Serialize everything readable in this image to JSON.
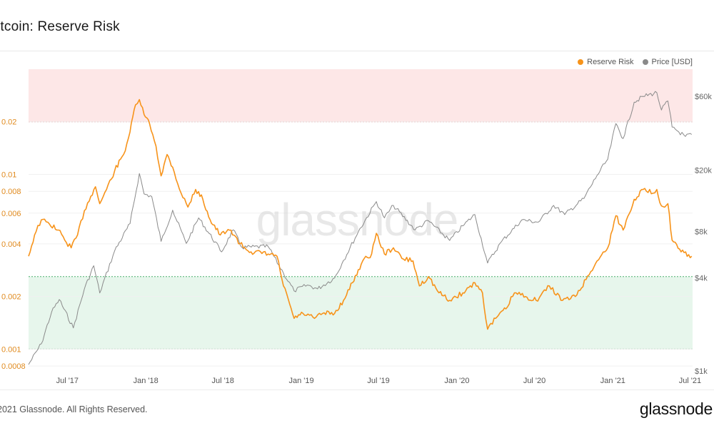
{
  "header": {
    "title": "itcoin: Reserve Risk"
  },
  "footer": {
    "copyright": "2021 Glassnode. All Rights Reserved.",
    "brand": "glassnode"
  },
  "watermark": "glassnode",
  "colors": {
    "reserve_risk": "#f7931a",
    "price": "#8a8a8a",
    "high_zone": "#fde7e7",
    "low_zone": "#e7f6ec",
    "high_line": "#e06666",
    "low_line": "#4caf6e"
  },
  "chart_data": {
    "type": "line",
    "title": "itcoin: Reserve Risk",
    "legend": [
      {
        "name": "Reserve Risk",
        "color": "#f7931a"
      },
      {
        "name": "Price [USD]",
        "color": "#8a8a8a"
      }
    ],
    "legend_position": "top-right",
    "x_ticks": [
      "Jul '17",
      "Jan '18",
      "Jul '18",
      "Jan '19",
      "Jul '19",
      "Jan '20",
      "Jul '20",
      "Jan '21",
      "Jul '21"
    ],
    "x_range": [
      "2017-04-01",
      "2021-07-07"
    ],
    "y_left": {
      "scale": "log",
      "range": [
        0.00075,
        0.04
      ],
      "ticks": [
        "0.02",
        "0.01",
        "0.008",
        "0.006",
        "0.004",
        "0.002",
        "0.001",
        "0.0008"
      ]
    },
    "y_right": {
      "scale": "log",
      "range": [
        1000,
        90000
      ],
      "ticks": [
        "$60k",
        "$20k",
        "$8k",
        "$4k",
        "$1k"
      ]
    },
    "zones": {
      "high_threshold": 0.02,
      "low_threshold": 0.0026,
      "bottom_threshold": 0.001
    },
    "series": [
      {
        "name": "Reserve Risk",
        "axis": "left",
        "points": [
          [
            "2017-04-01",
            0.0034
          ],
          [
            "2017-04-15",
            0.0045
          ],
          [
            "2017-05-01",
            0.0055
          ],
          [
            "2017-05-20",
            0.0052
          ],
          [
            "2017-06-10",
            0.0048
          ],
          [
            "2017-06-25",
            0.0042
          ],
          [
            "2017-07-10",
            0.0038
          ],
          [
            "2017-07-25",
            0.0045
          ],
          [
            "2017-08-10",
            0.0062
          ],
          [
            "2017-08-25",
            0.0075
          ],
          [
            "2017-09-05",
            0.0085
          ],
          [
            "2017-09-15",
            0.0068
          ],
          [
            "2017-10-01",
            0.0082
          ],
          [
            "2017-10-20",
            0.0105
          ],
          [
            "2017-11-10",
            0.013
          ],
          [
            "2017-11-25",
            0.0175
          ],
          [
            "2017-12-08",
            0.025
          ],
          [
            "2017-12-17",
            0.0268
          ],
          [
            "2017-12-28",
            0.022
          ],
          [
            "2018-01-10",
            0.0195
          ],
          [
            "2018-01-25",
            0.0145
          ],
          [
            "2018-02-06",
            0.0098
          ],
          [
            "2018-02-20",
            0.013
          ],
          [
            "2018-03-05",
            0.011
          ],
          [
            "2018-03-25",
            0.0078
          ],
          [
            "2018-04-10",
            0.0065
          ],
          [
            "2018-04-28",
            0.0082
          ],
          [
            "2018-05-15",
            0.0072
          ],
          [
            "2018-06-01",
            0.0055
          ],
          [
            "2018-06-25",
            0.0045
          ],
          [
            "2018-07-20",
            0.0048
          ],
          [
            "2018-08-10",
            0.004
          ],
          [
            "2018-09-05",
            0.0036
          ],
          [
            "2018-10-15",
            0.0035
          ],
          [
            "2018-11-05",
            0.0034
          ],
          [
            "2018-11-20",
            0.0023
          ],
          [
            "2018-12-05",
            0.0018
          ],
          [
            "2018-12-15",
            0.0015
          ],
          [
            "2019-01-05",
            0.0016
          ],
          [
            "2019-02-01",
            0.0015
          ],
          [
            "2019-02-20",
            0.0016
          ],
          [
            "2019-03-20",
            0.0016
          ],
          [
            "2019-04-10",
            0.0019
          ],
          [
            "2019-05-01",
            0.0024
          ],
          [
            "2019-05-25",
            0.0032
          ],
          [
            "2019-06-15",
            0.0035
          ],
          [
            "2019-06-26",
            0.0046
          ],
          [
            "2019-07-15",
            0.0035
          ],
          [
            "2019-08-05",
            0.0038
          ],
          [
            "2019-08-25",
            0.0033
          ],
          [
            "2019-09-20",
            0.0032
          ],
          [
            "2019-10-05",
            0.0023
          ],
          [
            "2019-10-26",
            0.0026
          ],
          [
            "2019-11-20",
            0.0021
          ],
          [
            "2019-12-15",
            0.0019
          ],
          [
            "2020-01-15",
            0.0021
          ],
          [
            "2020-02-12",
            0.0024
          ],
          [
            "2020-03-01",
            0.0021
          ],
          [
            "2020-03-13",
            0.0013
          ],
          [
            "2020-04-01",
            0.0015
          ],
          [
            "2020-04-25",
            0.0017
          ],
          [
            "2020-05-15",
            0.0021
          ],
          [
            "2020-06-10",
            0.002
          ],
          [
            "2020-07-05",
            0.0019
          ],
          [
            "2020-08-05",
            0.0023
          ],
          [
            "2020-09-05",
            0.0019
          ],
          [
            "2020-10-05",
            0.002
          ],
          [
            "2020-10-30",
            0.0025
          ],
          [
            "2020-11-25",
            0.0032
          ],
          [
            "2020-12-20",
            0.0038
          ],
          [
            "2021-01-08",
            0.0058
          ],
          [
            "2021-01-25",
            0.0048
          ],
          [
            "2021-02-20",
            0.0072
          ],
          [
            "2021-03-13",
            0.0082
          ],
          [
            "2021-04-05",
            0.0078
          ],
          [
            "2021-04-14",
            0.0082
          ],
          [
            "2021-04-25",
            0.0066
          ],
          [
            "2021-05-10",
            0.0068
          ],
          [
            "2021-05-20",
            0.0042
          ],
          [
            "2021-06-10",
            0.0036
          ],
          [
            "2021-07-05",
            0.0034
          ]
        ]
      },
      {
        "name": "Price [USD]",
        "axis": "right",
        "points": [
          [
            "2017-04-01",
            1100
          ],
          [
            "2017-05-01",
            1500
          ],
          [
            "2017-05-25",
            2400
          ],
          [
            "2017-06-12",
            2900
          ],
          [
            "2017-07-15",
            1900
          ],
          [
            "2017-08-10",
            3400
          ],
          [
            "2017-09-01",
            4800
          ],
          [
            "2017-09-15",
            3200
          ],
          [
            "2017-10-20",
            6000
          ],
          [
            "2017-11-25",
            9000
          ],
          [
            "2017-12-17",
            19000
          ],
          [
            "2017-12-28",
            14000
          ],
          [
            "2018-01-15",
            13500
          ],
          [
            "2018-02-06",
            6900
          ],
          [
            "2018-03-05",
            11000
          ],
          [
            "2018-04-06",
            6700
          ],
          [
            "2018-05-05",
            9800
          ],
          [
            "2018-06-28",
            5900
          ],
          [
            "2018-07-25",
            8200
          ],
          [
            "2018-08-15",
            6300
          ],
          [
            "2018-10-15",
            6400
          ],
          [
            "2018-11-20",
            4300
          ],
          [
            "2018-12-15",
            3300
          ],
          [
            "2019-01-15",
            3600
          ],
          [
            "2019-02-08",
            3400
          ],
          [
            "2019-03-20",
            4000
          ],
          [
            "2019-04-10",
            5200
          ],
          [
            "2019-05-15",
            8000
          ],
          [
            "2019-06-26",
            12500
          ],
          [
            "2019-07-15",
            9800
          ],
          [
            "2019-08-05",
            11800
          ],
          [
            "2019-09-25",
            8200
          ],
          [
            "2019-10-26",
            9400
          ],
          [
            "2019-12-15",
            7000
          ],
          [
            "2020-01-15",
            8700
          ],
          [
            "2020-02-12",
            10300
          ],
          [
            "2020-03-13",
            5000
          ],
          [
            "2020-04-15",
            6900
          ],
          [
            "2020-06-01",
            9500
          ],
          [
            "2020-07-10",
            9200
          ],
          [
            "2020-08-15",
            11800
          ],
          [
            "2020-09-10",
            10300
          ],
          [
            "2020-10-25",
            13100
          ],
          [
            "2020-11-25",
            18500
          ],
          [
            "2020-12-20",
            23500
          ],
          [
            "2021-01-08",
            40000
          ],
          [
            "2021-01-25",
            32000
          ],
          [
            "2021-02-20",
            55000
          ],
          [
            "2021-03-13",
            60000
          ],
          [
            "2021-04-14",
            63500
          ],
          [
            "2021-04-25",
            49000
          ],
          [
            "2021-05-10",
            56000
          ],
          [
            "2021-05-20",
            38000
          ],
          [
            "2021-06-20",
            33000
          ],
          [
            "2021-07-05",
            34000
          ]
        ]
      }
    ]
  }
}
